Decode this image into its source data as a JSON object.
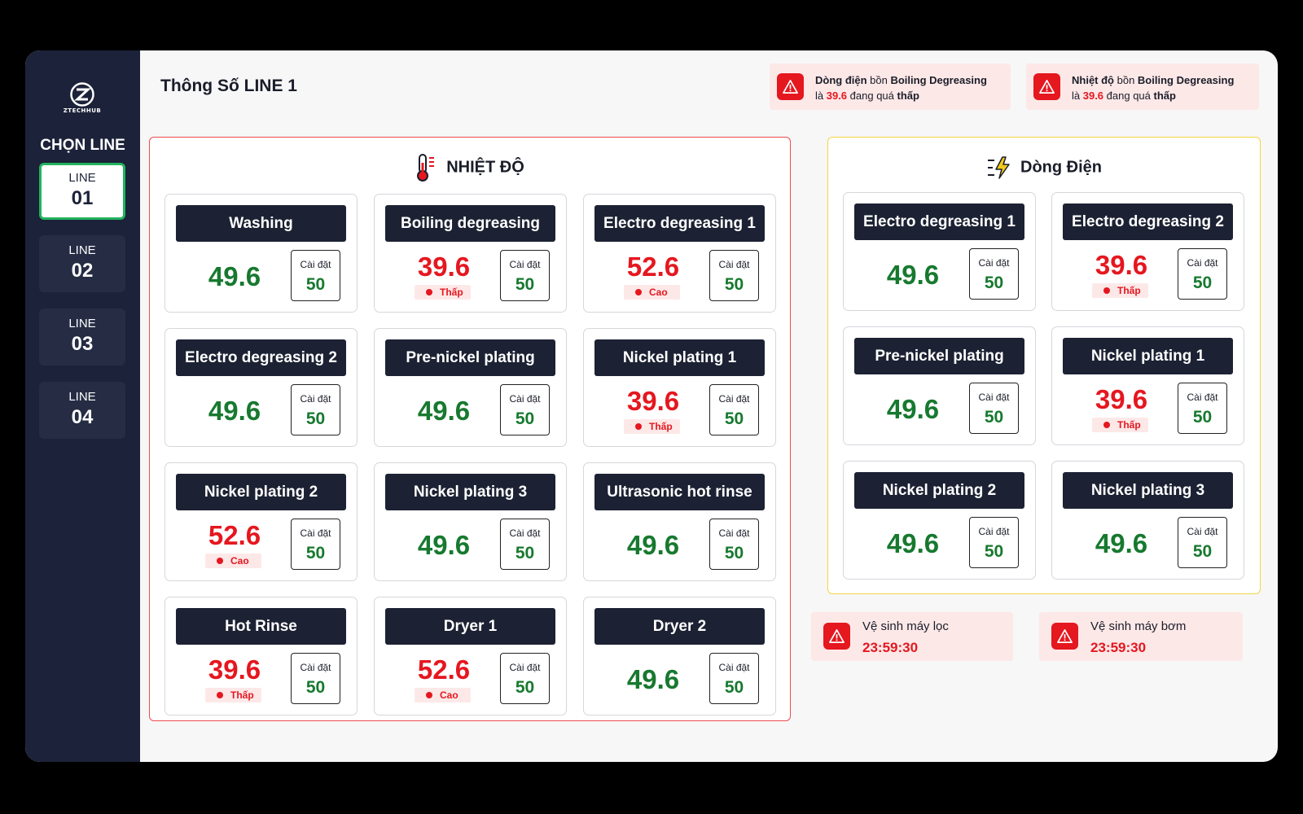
{
  "brand": {
    "logo_text": "ZTECHHUB"
  },
  "sidebar": {
    "title": "CHỌN LINE",
    "lines": [
      {
        "label": "LINE",
        "number": "01",
        "active": true
      },
      {
        "label": "LINE",
        "number": "02",
        "active": false
      },
      {
        "label": "LINE",
        "number": "03",
        "active": false
      },
      {
        "label": "LINE",
        "number": "04",
        "active": false
      }
    ]
  },
  "header": {
    "title": "Thông Số LINE 1",
    "alerts": [
      {
        "line1_bold_a": "Dòng điện",
        "line1_mid": " bồn ",
        "line1_bold_b": "Boiling Degreasing",
        "line2_pre": "là ",
        "line2_value": "39.6",
        "line2_mid": " đang quá ",
        "line2_bold": "thấp"
      },
      {
        "line1_bold_a": "Nhiệt độ",
        "line1_mid": " bồn ",
        "line1_bold_b": "Boiling Degreasing",
        "line2_pre": "là ",
        "line2_value": "39.6",
        "line2_mid": " đang quá ",
        "line2_bold": "thấp"
      }
    ]
  },
  "temperature": {
    "title": "NHIỆT ĐỘ",
    "cards": [
      {
        "name": "Washing",
        "value": "49.6",
        "status": "",
        "setting_label": "Cài đặt",
        "setting_value": "50"
      },
      {
        "name": "Boiling degreasing",
        "value": "39.6",
        "status": "Thấp",
        "setting_label": "Cài đặt",
        "setting_value": "50"
      },
      {
        "name": "Electro degreasing 1",
        "value": "52.6",
        "status": "Cao",
        "setting_label": "Cài đặt",
        "setting_value": "50"
      },
      {
        "name": "Electro degreasing 2",
        "value": "49.6",
        "status": "",
        "setting_label": "Cài đặt",
        "setting_value": "50"
      },
      {
        "name": "Pre-nickel plating",
        "value": "49.6",
        "status": "",
        "setting_label": "Cài đặt",
        "setting_value": "50"
      },
      {
        "name": "Nickel plating 1",
        "value": "39.6",
        "status": "Thấp",
        "setting_label": "Cài đặt",
        "setting_value": "50"
      },
      {
        "name": "Nickel plating 2",
        "value": "52.6",
        "status": "Cao",
        "setting_label": "Cài đặt",
        "setting_value": "50"
      },
      {
        "name": "Nickel plating 3",
        "value": "49.6",
        "status": "",
        "setting_label": "Cài đặt",
        "setting_value": "50"
      },
      {
        "name": "Ultrasonic hot rinse",
        "value": "49.6",
        "status": "",
        "setting_label": "Cài đặt",
        "setting_value": "50"
      },
      {
        "name": "Hot Rinse",
        "value": "39.6",
        "status": "Thấp",
        "setting_label": "Cài đặt",
        "setting_value": "50"
      },
      {
        "name": "Dryer 1",
        "value": "52.6",
        "status": "Cao",
        "setting_label": "Cài đặt",
        "setting_value": "50"
      },
      {
        "name": "Dryer 2",
        "value": "49.6",
        "status": "",
        "setting_label": "Cài đặt",
        "setting_value": "50"
      }
    ]
  },
  "current": {
    "title": "Dòng Điện",
    "cards": [
      {
        "name": "Electro degreasing 1",
        "value": "49.6",
        "status": "",
        "setting_label": "Cài đặt",
        "setting_value": "50"
      },
      {
        "name": "Electro degreasing 2",
        "value": "39.6",
        "status": "Thấp",
        "setting_label": "Cài đặt",
        "setting_value": "50"
      },
      {
        "name": "Pre-nickel plating",
        "value": "49.6",
        "status": "",
        "setting_label": "Cài đặt",
        "setting_value": "50"
      },
      {
        "name": "Nickel plating 1",
        "value": "39.6",
        "status": "Thấp",
        "setting_label": "Cài đặt",
        "setting_value": "50"
      },
      {
        "name": "Nickel plating 2",
        "value": "49.6",
        "status": "",
        "setting_label": "Cài đặt",
        "setting_value": "50"
      },
      {
        "name": "Nickel plating 3",
        "value": "49.6",
        "status": "",
        "setting_label": "Cài đặt",
        "setting_value": "50"
      }
    ]
  },
  "maintenance": [
    {
      "title": "Vệ sinh máy lọc",
      "time": "23:59:30"
    },
    {
      "title": "Vệ sinh máy bơm",
      "time": "23:59:30"
    }
  ],
  "colors": {
    "normal": "#17792f",
    "warning": "#e5171f",
    "sidebar": "#1c2239",
    "active_border": "#22b35e"
  }
}
